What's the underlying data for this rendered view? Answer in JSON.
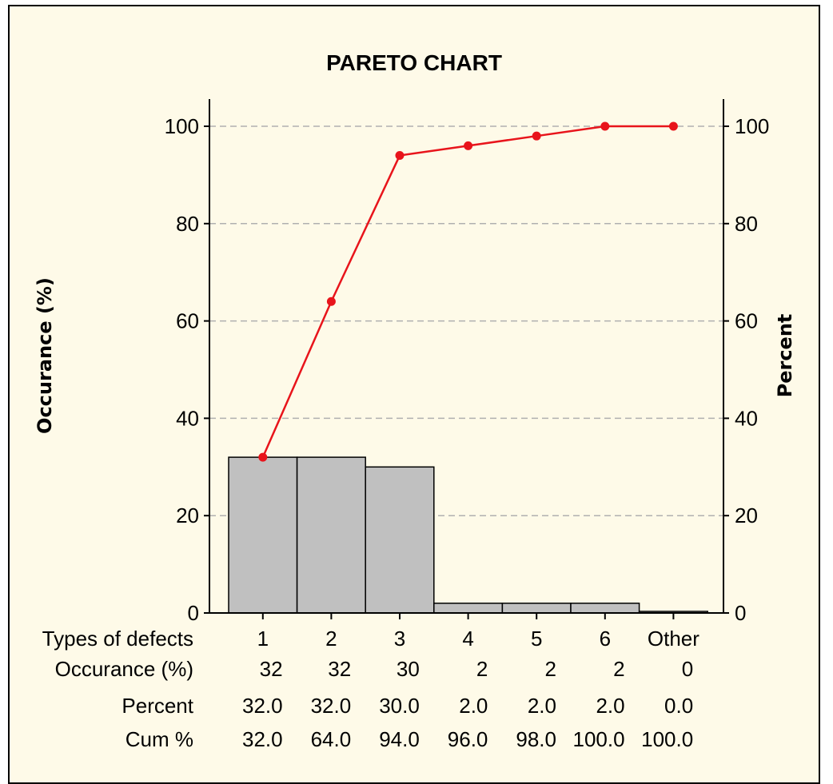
{
  "chart_data": {
    "type": "bar",
    "title": "PARETO CHART",
    "ylabel": "Occurance (%)",
    "y2label": "Percent",
    "ylim": [
      0,
      100
    ],
    "y2lim": [
      0,
      100
    ],
    "yticks": [
      0,
      20,
      40,
      60,
      80,
      100
    ],
    "y2ticks": [
      0,
      20,
      40,
      60,
      80,
      100
    ],
    "grid": true,
    "categories": [
      "1",
      "2",
      "3",
      "4",
      "5",
      "6",
      "Other"
    ],
    "series": [
      {
        "type": "bar",
        "values": [
          32,
          32,
          30,
          2,
          2,
          2,
          0
        ]
      },
      {
        "type": "line",
        "axis": "right",
        "values": [
          32.0,
          64.0,
          94.0,
          96.0,
          98.0,
          100.0,
          100.0
        ]
      }
    ],
    "table": {
      "row_labels": [
        "Types of defects",
        "Occurance (%)",
        "Percent",
        "Cum %"
      ],
      "occurance": [
        "32",
        "32",
        "30",
        "2",
        "2",
        "2",
        "0"
      ],
      "percent": [
        "32.0",
        "32.0",
        "30.0",
        "2.0",
        "2.0",
        "2.0",
        "0.0"
      ],
      "cum": [
        "32.0",
        "64.0",
        "94.0",
        "96.0",
        "98.0",
        "100.0",
        "100.0"
      ]
    },
    "colors": {
      "bar_fill": "#c0c0c0",
      "line": "#e8141b",
      "grid": "#b0b0b0"
    }
  }
}
